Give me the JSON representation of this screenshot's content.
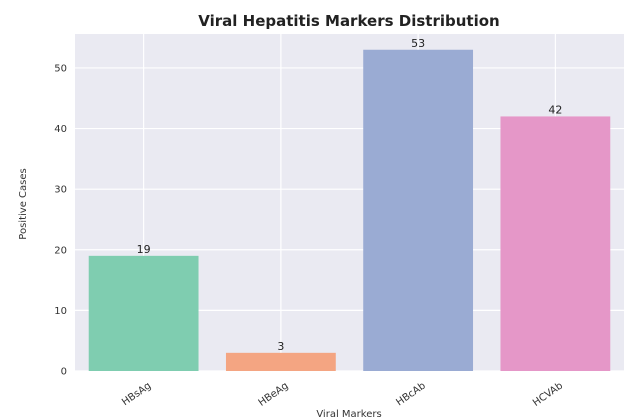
{
  "chart_data": {
    "type": "bar",
    "title": "Viral Hepatitis Markers Distribution",
    "xlabel": "Viral Markers",
    "ylabel": "Positive Cases",
    "categories": [
      "HBsAg",
      "HBeAg",
      "HBcAb",
      "HCVAb"
    ],
    "values": [
      19,
      3,
      53,
      42
    ],
    "data_labels": [
      "19",
      "3",
      "53",
      "42"
    ],
    "colors": [
      "#7fcdb0",
      "#f4a582",
      "#9aabd3",
      "#e597c8"
    ],
    "ylim": [
      0,
      55.6
    ],
    "yticks": [
      0,
      10,
      20,
      30,
      40,
      50
    ],
    "ytick_labels": [
      "0",
      "10",
      "20",
      "30",
      "40",
      "50"
    ],
    "grid": true,
    "background": "#eaeaf2",
    "grid_color": "#ffffff"
  }
}
